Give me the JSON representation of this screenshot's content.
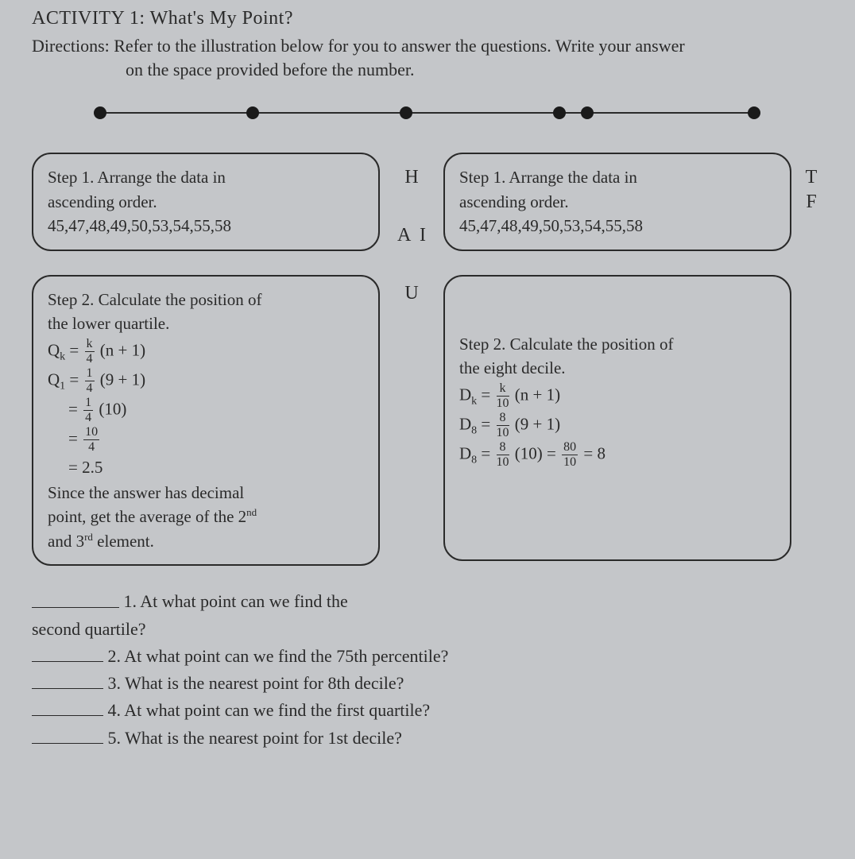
{
  "activity": {
    "title": "ACTIVITY 1: What's My Point?",
    "directions_line1": "Directions: Refer to the illustration below for you to answer the questions. Write your answer",
    "directions_line2": "on the space provided before the number."
  },
  "numberline": {
    "dot_positions_pct": [
      2,
      24,
      46,
      68,
      72,
      96
    ],
    "line_color": "#2a2a2a",
    "dot_color": "#1a1a1a"
  },
  "mid_letters": {
    "h": "H",
    "ai": "A  I",
    "u": "U"
  },
  "right_letters": {
    "t": "T",
    "f": "F"
  },
  "step1_left": {
    "line1": "Step 1. Arrange the data in",
    "line2": "ascending order.",
    "line3": "45,47,48,49,50,53,54,55,58"
  },
  "step1_right": {
    "line1": "Step 1. Arrange the data in",
    "line2": "ascending order.",
    "line3": "45,47,48,49,50,53,54,55,58"
  },
  "step2_left": {
    "heading1": "Step 2. Calculate the position of",
    "heading2": "the lower quartile.",
    "eq1_lhs": "Q",
    "eq1_sub": "k",
    "eq1_eq": " = ",
    "eq1_num": "k",
    "eq1_den": "4",
    "eq1_rhs": "(n + 1)",
    "eq2_lhs": "Q",
    "eq2_sub": "1",
    "eq2_num": "1",
    "eq2_den": "4",
    "eq2_rhs": "(9 + 1)",
    "eq3_num": "1",
    "eq3_den": "4",
    "eq3_rhs": "(10)",
    "eq4_num": "10",
    "eq4_den": "4",
    "eq5": "= 2.5",
    "note1": "Since the answer has decimal",
    "note2": "point, get the average of the 2",
    "note2_sup": "nd",
    "note3": "and 3",
    "note3_sup": "rd",
    "note3_tail": " element."
  },
  "step2_right": {
    "heading1": "Step 2. Calculate the position of",
    "heading2": "the eight decile.",
    "eq1_lhs": "D",
    "eq1_sub": "k",
    "eq1_num": "k",
    "eq1_den": "10",
    "eq1_rhs": "(n + 1)",
    "eq2_lhs": "D",
    "eq2_sub": "8",
    "eq2_num": "8",
    "eq2_den": "10",
    "eq2_rhs": "(9 + 1)",
    "eq3_lhs": "D",
    "eq3_sub": "8",
    "eq3_num": "8",
    "eq3_den": "10",
    "eq3_mid": "(10) = ",
    "eq3_num2": "80",
    "eq3_den2": "10",
    "eq3_tail": " = 8"
  },
  "questions": {
    "q1a": "1. At what point can we find the",
    "q1b": "second quartile?",
    "q2": "2. At what point can we find the 75th percentile?",
    "q3": "3. What is the nearest point for 8th decile?",
    "q4": "4. At what point can we find the first quartile?",
    "q5": "5. What is the nearest point for 1st decile?"
  },
  "colors": {
    "background": "#c4c6c9",
    "text": "#2a2a2a",
    "border": "#2a2a2a"
  }
}
